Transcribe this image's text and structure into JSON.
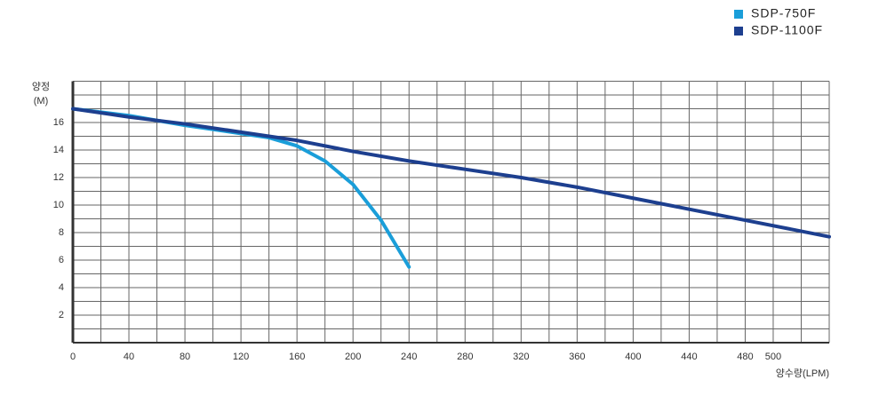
{
  "chart_data": {
    "type": "line",
    "x_label": "양수량(LPM)",
    "y_label": [
      "양정",
      "(M)"
    ],
    "legend": "top-right",
    "grid": true,
    "xlim": [
      0,
      540
    ],
    "ylim": [
      0,
      19
    ],
    "xticks": [
      0,
      40,
      80,
      120,
      160,
      200,
      240,
      280,
      320,
      360,
      400,
      440,
      480,
      500
    ],
    "yticks": [
      2,
      4,
      6,
      8,
      10,
      12,
      14,
      16
    ],
    "x_minor_ticks": [
      20,
      60,
      100,
      140,
      180,
      220,
      260,
      300,
      340,
      380,
      420,
      460,
      520,
      540
    ],
    "y_minor_ticks": [
      1,
      3,
      5,
      7,
      9,
      11,
      13,
      15,
      17,
      18,
      19
    ],
    "series": [
      {
        "name": "SDP-750F",
        "color": "#1a9ed9",
        "x": [
          0,
          40,
          80,
          120,
          140,
          160,
          180,
          200,
          220,
          240
        ],
        "values": [
          17,
          16.5,
          15.8,
          15.2,
          14.9,
          14.3,
          13.2,
          11.5,
          8.9,
          5.5
        ]
      },
      {
        "name": "SDP-1100F",
        "color": "#1d3f8f",
        "x": [
          0,
          40,
          80,
          120,
          160,
          200,
          240,
          280,
          320,
          360,
          400,
          440,
          480,
          540
        ],
        "values": [
          17,
          16.4,
          15.9,
          15.3,
          14.7,
          13.9,
          13.2,
          12.6,
          12.0,
          11.3,
          10.5,
          9.7,
          8.9,
          7.7
        ]
      }
    ]
  }
}
